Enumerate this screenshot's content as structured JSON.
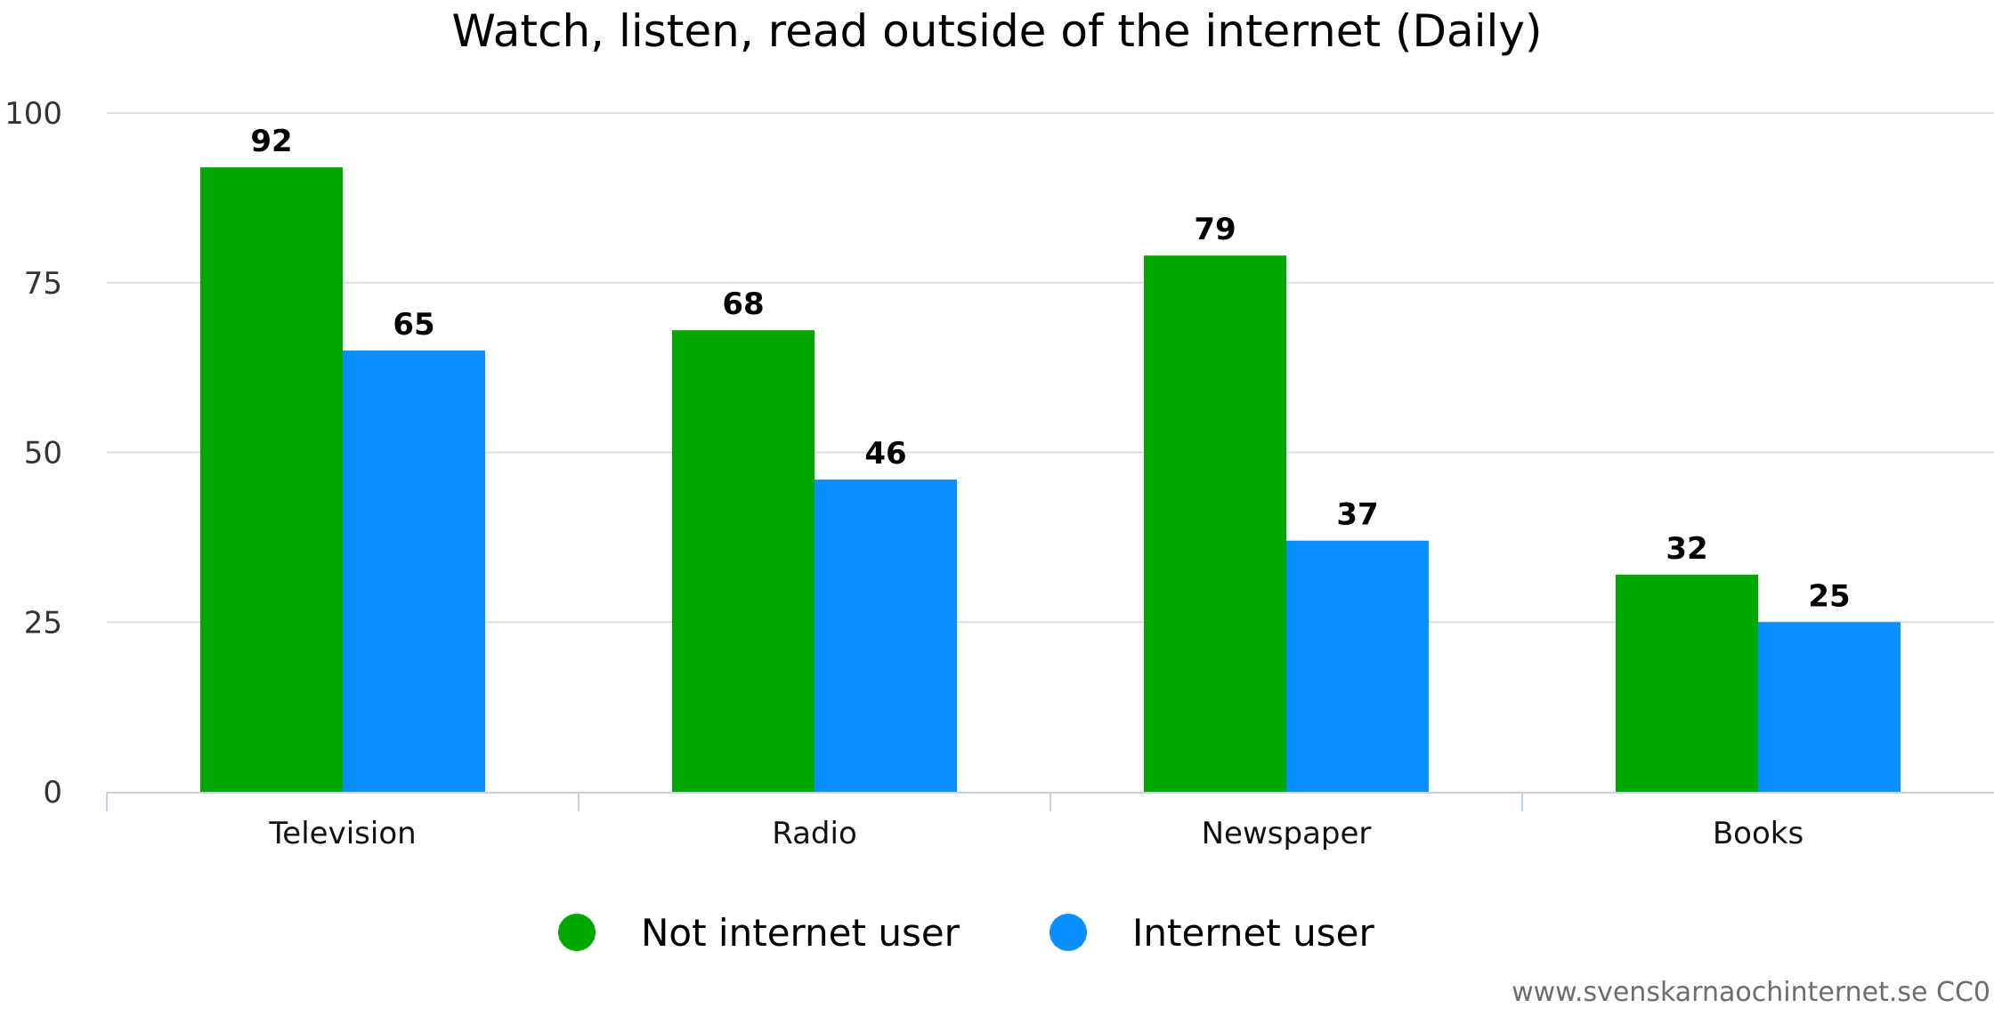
{
  "chart_data": {
    "type": "bar",
    "title": "Watch, listen, read outside of the internet (Daily)",
    "categories": [
      "Television",
      "Radio",
      "Newspaper",
      "Books"
    ],
    "series": [
      {
        "name": "Not internet user",
        "color": "#00a800",
        "values": [
          92,
          68,
          79,
          32
        ]
      },
      {
        "name": "Internet user",
        "color": "#0a8ffe",
        "values": [
          65,
          46,
          37,
          25
        ]
      }
    ],
    "ylim": [
      0,
      100
    ],
    "yticks": [
      0,
      25,
      50,
      75,
      100
    ],
    "xlabel": "",
    "ylabel": "",
    "grid": true,
    "legend_position": "bottom-center"
  },
  "credit": "www.svenskarnaochinternet.se CC0"
}
